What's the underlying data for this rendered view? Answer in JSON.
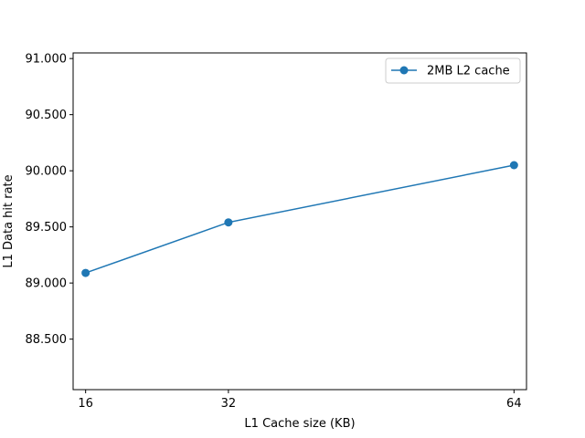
{
  "chart_data": {
    "type": "line",
    "xlabel": "L1 Cache size (KB)",
    "ylabel": "L1 Data hit rate",
    "x": [
      16,
      32,
      64
    ],
    "x_ticks": [
      "16",
      "32",
      "64"
    ],
    "xlim": [
      14.6,
      65.4
    ],
    "ylim": [
      88.05,
      91.05
    ],
    "y_ticks": [
      "88.500",
      "89.000",
      "89.500",
      "90.000",
      "90.500",
      "91.000"
    ],
    "y_tick_values": [
      88.5,
      89.0,
      89.5,
      90.0,
      90.5,
      91.0
    ],
    "series": [
      {
        "name": "2MB L2 cache",
        "values": [
          89.09,
          89.54,
          90.05
        ],
        "color": "#1f77b4",
        "marker": "circle"
      }
    ],
    "legend": {
      "position": "upper right"
    },
    "grid": false
  }
}
